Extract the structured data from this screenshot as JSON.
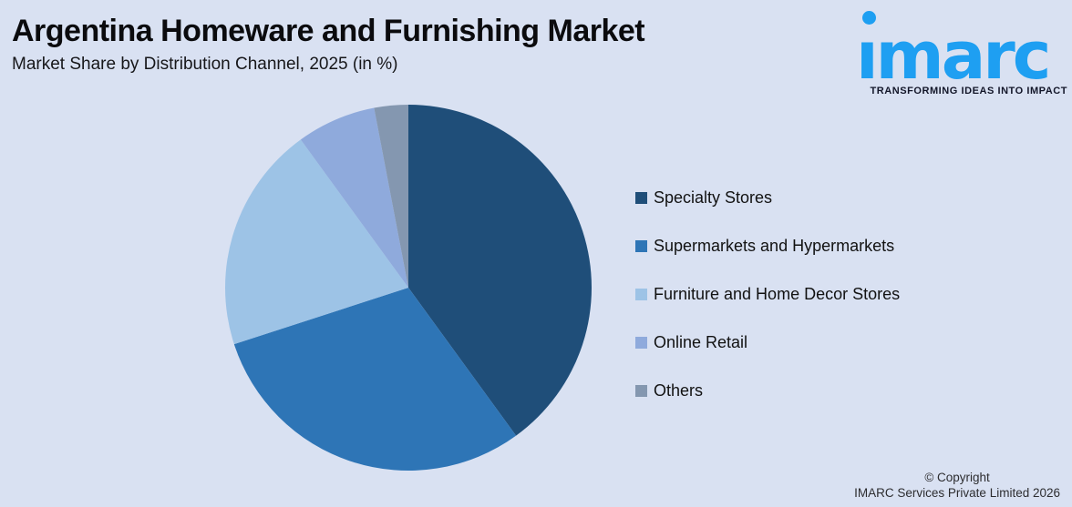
{
  "canvas": {
    "background": "#D9E1F2"
  },
  "header": {
    "title": "Argentina Homeware and Furnishing Market",
    "subtitle": "Market Share by Distribution Channel, 2025 (in %)"
  },
  "logo": {
    "wordmark": "imarc",
    "tagline": "TRANSFORMING IDEAS INTO IMPACT",
    "brand_color": "#1E9FF2"
  },
  "chart_data": {
    "type": "pie",
    "title": "Argentina Homeware and Furnishing Market",
    "subtitle": "Market Share by Distribution Channel, 2025 (in %)",
    "unit": "%",
    "categories": [
      "Specialty Stores",
      "Supermarkets and Hypermarkets",
      "Furniture and Home Decor Stores",
      "Online Retail",
      "Others"
    ],
    "values": [
      40,
      30,
      20,
      7,
      3
    ],
    "colors": [
      "#1F4E79",
      "#2E75B6",
      "#9DC3E6",
      "#8FAADC",
      "#8497B0"
    ],
    "start_angle_deg": 0,
    "direction": "clockwise",
    "legend_position": "right",
    "labels_shown_on_slices": false
  },
  "footer": {
    "line1": "© Copyright",
    "line2": "IMARC Services Private Limited 2026"
  }
}
